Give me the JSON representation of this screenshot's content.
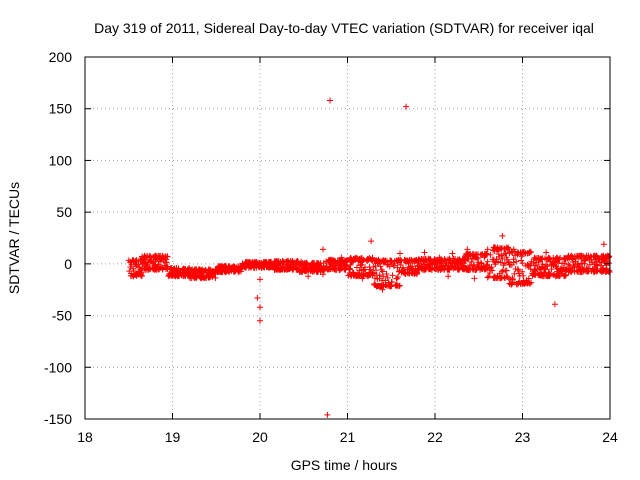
{
  "chart_data": {
    "type": "scatter",
    "title": "Day 319 of 2011, Sidereal Day-to-day VTEC variation (SDTVAR) for receiver iqal",
    "xlabel": "GPS time / hours",
    "ylabel": "SDTVAR / TECUs",
    "xlim": [
      18,
      24
    ],
    "ylim": [
      -150,
      200
    ],
    "xticks": [
      18,
      19,
      20,
      21,
      22,
      23,
      24
    ],
    "yticks": [
      -150,
      -100,
      -50,
      0,
      50,
      100,
      150,
      200
    ],
    "grid": true,
    "marker": "plus",
    "colors": {
      "series": "#ff0000",
      "grid": "#a0a0a0",
      "axis": "#000000"
    },
    "bands": [
      {
        "x_start": 18.5,
        "x_end": 18.65,
        "lo": -12,
        "hi": 4
      },
      {
        "x_start": 18.65,
        "x_end": 18.95,
        "lo": -6,
        "hi": 8
      },
      {
        "x_start": 18.95,
        "x_end": 19.2,
        "lo": -12,
        "hi": -4
      },
      {
        "x_start": 19.2,
        "x_end": 19.5,
        "lo": -14,
        "hi": -5
      },
      {
        "x_start": 19.5,
        "x_end": 19.8,
        "lo": -8,
        "hi": -2
      },
      {
        "x_start": 19.8,
        "x_end": 20.15,
        "lo": -4,
        "hi": 2
      },
      {
        "x_start": 20.15,
        "x_end": 20.45,
        "lo": -6,
        "hi": 3
      },
      {
        "x_start": 20.45,
        "x_end": 20.75,
        "lo": -8,
        "hi": 1
      },
      {
        "x_start": 20.75,
        "x_end": 21.0,
        "lo": -6,
        "hi": 4
      },
      {
        "x_start": 21.0,
        "x_end": 21.3,
        "lo": -12,
        "hi": 6
      },
      {
        "x_start": 21.3,
        "x_end": 21.6,
        "lo": -22,
        "hi": 4
      },
      {
        "x_start": 21.6,
        "x_end": 21.8,
        "lo": -10,
        "hi": 4
      },
      {
        "x_start": 21.8,
        "x_end": 22.35,
        "lo": -6,
        "hi": 5
      },
      {
        "x_start": 22.35,
        "x_end": 22.6,
        "lo": -6,
        "hi": 10
      },
      {
        "x_start": 22.6,
        "x_end": 22.85,
        "lo": -14,
        "hi": 16
      },
      {
        "x_start": 22.85,
        "x_end": 23.1,
        "lo": -20,
        "hi": 12
      },
      {
        "x_start": 23.1,
        "x_end": 23.5,
        "lo": -12,
        "hi": 6
      },
      {
        "x_start": 23.5,
        "x_end": 24.0,
        "lo": -8,
        "hi": 8
      }
    ],
    "points": [
      [
        20.8,
        158
      ],
      [
        21.67,
        152
      ],
      [
        20.77,
        -146
      ],
      [
        20.0,
        -42
      ],
      [
        20.0,
        -55
      ],
      [
        19.97,
        -33
      ],
      [
        20.0,
        -15
      ],
      [
        20.72,
        -10
      ],
      [
        20.72,
        14
      ],
      [
        21.27,
        22
      ],
      [
        22.77,
        27
      ],
      [
        23.93,
        19
      ],
      [
        23.37,
        -39
      ],
      [
        21.6,
        10
      ],
      [
        20.93,
        6
      ],
      [
        21.17,
        -14
      ],
      [
        21.4,
        -25
      ],
      [
        21.47,
        -18
      ],
      [
        21.88,
        11
      ],
      [
        22.2,
        10
      ],
      [
        22.05,
        6
      ],
      [
        22.37,
        14
      ],
      [
        23.27,
        11
      ],
      [
        21.03,
        -5
      ],
      [
        20.55,
        -12
      ],
      [
        22.45,
        -14
      ],
      [
        22.15,
        -12
      ],
      [
        19.62,
        -6
      ],
      [
        20.47,
        2
      ],
      [
        21.5,
        2
      ],
      [
        23.73,
        8
      ],
      [
        22.9,
        14
      ]
    ]
  }
}
